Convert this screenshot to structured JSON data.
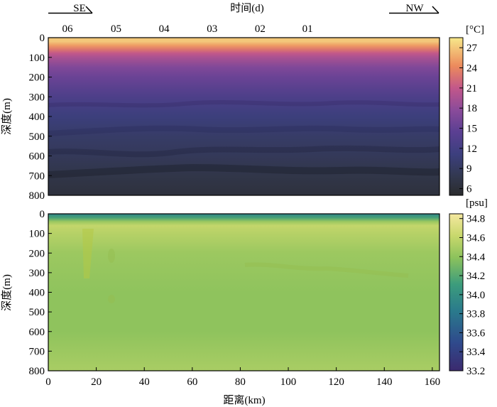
{
  "top_axis": {
    "label": "时间(d)",
    "ticks": [
      {
        "label": "06",
        "km": 16
      },
      {
        "label": "05",
        "km": 56.5
      },
      {
        "label": "04",
        "km": 96.5
      },
      {
        "label": "03",
        "km": 136.5
      },
      {
        "label": "02",
        "km": 176.5
      },
      {
        "label": "01",
        "km": 216
      }
    ],
    "direction_left": "SE",
    "direction_right": "NW"
  },
  "chart_data": [
    {
      "type": "heatmap",
      "variable": "temperature",
      "xlabel": "距离(km)",
      "ylabel": "深度(m)",
      "xlim": [
        0,
        163
      ],
      "ylim": [
        800,
        0
      ],
      "x_ticks": [],
      "y_ticks": [
        0,
        100,
        200,
        300,
        400,
        500,
        600,
        700,
        800
      ],
      "colorbar": {
        "unit": "[°C]",
        "ticks": [
          27,
          24,
          21,
          18,
          15,
          12,
          9,
          6
        ],
        "range": [
          5,
          28.5
        ]
      },
      "profile": [
        {
          "depth": 0,
          "value": 27
        },
        {
          "depth": 20,
          "value": 27
        },
        {
          "depth": 40,
          "value": 25
        },
        {
          "depth": 60,
          "value": 23
        },
        {
          "depth": 80,
          "value": 21
        },
        {
          "depth": 100,
          "value": 19.5
        },
        {
          "depth": 150,
          "value": 17
        },
        {
          "depth": 200,
          "value": 15.5
        },
        {
          "depth": 300,
          "value": 13
        },
        {
          "depth": 400,
          "value": 11
        },
        {
          "depth": 500,
          "value": 9.5
        },
        {
          "depth": 600,
          "value": 8.5
        },
        {
          "depth": 700,
          "value": 7.3
        },
        {
          "depth": 800,
          "value": 6.3
        }
      ]
    },
    {
      "type": "heatmap",
      "variable": "salinity",
      "xlabel": "距离(km)",
      "ylabel": "深度(m)",
      "xlim": [
        0,
        163
      ],
      "ylim": [
        800,
        0
      ],
      "x_ticks": [
        0,
        20,
        40,
        60,
        80,
        100,
        120,
        140,
        160
      ],
      "y_ticks": [
        0,
        100,
        200,
        300,
        400,
        500,
        600,
        700,
        800
      ],
      "colorbar": {
        "unit": "[psu]",
        "ticks": [
          34.8,
          34.6,
          34.4,
          34.2,
          34.0,
          33.8,
          33.6,
          33.4,
          33.2
        ],
        "range": [
          33.2,
          34.85
        ]
      },
      "profile": [
        {
          "depth": 0,
          "value": 33.9
        },
        {
          "depth": 20,
          "value": 34.15
        },
        {
          "depth": 40,
          "value": 34.45
        },
        {
          "depth": 60,
          "value": 34.6
        },
        {
          "depth": 100,
          "value": 34.55
        },
        {
          "depth": 200,
          "value": 34.45
        },
        {
          "depth": 400,
          "value": 34.4
        },
        {
          "depth": 600,
          "value": 34.4
        },
        {
          "depth": 700,
          "value": 34.45
        },
        {
          "depth": 800,
          "value": 34.5
        }
      ]
    }
  ]
}
